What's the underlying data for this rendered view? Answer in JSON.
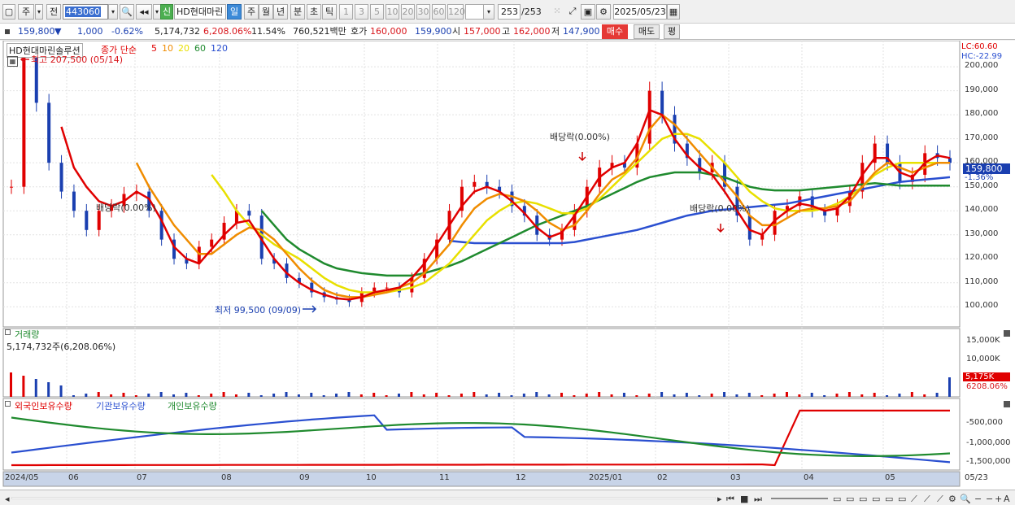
{
  "toolbar": {
    "period_main": "주",
    "prev_label": "전",
    "code": "443060",
    "stock_badge": "신",
    "stock_name": "HD현대마린",
    "periods": [
      "일",
      "주",
      "월",
      "년",
      "분",
      "초",
      "틱"
    ],
    "nums": [
      "1",
      "3",
      "5",
      "10",
      "20",
      "30",
      "60",
      "120"
    ],
    "count": "253",
    "count_total": "/253",
    "date": "2025/05/23"
  },
  "info": {
    "price": "159,800",
    "change": "1,000",
    "change_pct": "-0.62%",
    "volume": "5,174,732",
    "vol_ratio": "6,208.06%",
    "turnover": "11.54%",
    "amount": "760,521백만",
    "ask_label": "호가",
    "ask1": "160,000",
    "ask2": "159,900",
    "open_label": "시",
    "open": "157,000",
    "high_label": "고",
    "high": "162,000",
    "low_label": "저",
    "low": "147,900",
    "buy": "매수",
    "sell": "매도",
    "avg": "평"
  },
  "chart_data": {
    "type": "line",
    "title": "HD현대마린솔루션",
    "legend": {
      "price": "종가 단순",
      "ma": [
        "5",
        "10",
        "20",
        "60",
        "120"
      ],
      "ma_colors": [
        "#e00000",
        "#f08c00",
        "#e8e000",
        "#1f8a2e",
        "#2a4fd0"
      ]
    },
    "lc_hc": [
      "LC:60.60",
      "HC:-22.99"
    ],
    "y_ticks": [
      "200,000",
      "190,000",
      "180,000",
      "170,000",
      "160,000",
      "150,000",
      "140,000",
      "130,000",
      "120,000",
      "110,000",
      "100,000"
    ],
    "ylim": [
      95000,
      207500
    ],
    "current_price": "159,800",
    "current_pct": "-1.36%",
    "annotations": {
      "max": "최고 207,500 (05/14)",
      "min": "최저 99,500 (09/09)",
      "div1": "배당락(0.00%)",
      "div2": "배당락(0.00%)",
      "div3": "배당락(0.00%)"
    },
    "x_labels": [
      "2024/05",
      "06",
      "07",
      "08",
      "09",
      "10",
      "11",
      "12",
      "2025/01",
      "02",
      "03",
      "04",
      "05",
      "05/23"
    ],
    "close": [
      150000,
      205000,
      185000,
      160000,
      148000,
      140000,
      132000,
      140000,
      142000,
      147000,
      148000,
      140000,
      128000,
      120000,
      118000,
      125000,
      128000,
      135000,
      140000,
      138000,
      120000,
      118000,
      112000,
      110000,
      106000,
      104000,
      103000,
      102000,
      106000,
      108000,
      108000,
      106000,
      112000,
      120000,
      128000,
      140000,
      150000,
      152000,
      150000,
      148000,
      142000,
      138000,
      130000,
      128000,
      132000,
      140000,
      150000,
      158000,
      160000,
      158000,
      168000,
      190000,
      180000,
      168000,
      162000,
      156000,
      160000,
      150000,
      138000,
      128000,
      130000,
      140000,
      142000,
      146000,
      140000,
      138000,
      142000,
      148000,
      160000,
      168000,
      160000,
      152000,
      155000,
      164000,
      162000,
      160000
    ],
    "ma5": [
      null,
      null,
      null,
      null,
      175000,
      158000,
      150000,
      144000,
      142000,
      144000,
      148000,
      145000,
      136000,
      125000,
      120000,
      118000,
      124000,
      130000,
      135000,
      136000,
      128000,
      120000,
      114000,
      110000,
      107000,
      105000,
      103500,
      103000,
      104000,
      106000,
      107000,
      108000,
      112000,
      118000,
      126000,
      134000,
      142000,
      148000,
      150000,
      148000,
      144000,
      139000,
      133000,
      129000,
      131000,
      138000,
      146000,
      154000,
      158000,
      160000,
      168000,
      182000,
      180000,
      170000,
      163000,
      158000,
      155000,
      148000,
      140000,
      132000,
      130000,
      136000,
      140000,
      143000,
      142000,
      140000,
      141000,
      146000,
      155000,
      162000,
      162000,
      156000,
      154000,
      160000,
      163000,
      162000
    ],
    "ma10": [
      null,
      null,
      null,
      null,
      null,
      null,
      null,
      null,
      null,
      null,
      160000,
      150000,
      142000,
      134000,
      128000,
      122000,
      122000,
      126000,
      130000,
      133000,
      132000,
      128000,
      122000,
      116000,
      111000,
      107000,
      105000,
      104000,
      104000,
      105000,
      106000,
      108000,
      110000,
      114000,
      120000,
      126000,
      134000,
      141000,
      145000,
      147000,
      146000,
      144000,
      140000,
      135000,
      132000,
      134000,
      140000,
      147000,
      153000,
      156000,
      162000,
      174000,
      180000,
      176000,
      170000,
      164000,
      158000,
      152000,
      146000,
      138000,
      134000,
      134000,
      137000,
      140000,
      141000,
      141000,
      142000,
      144000,
      150000,
      156000,
      160000,
      158000,
      156000,
      158000,
      160000,
      160000
    ],
    "ma20": [
      null,
      null,
      null,
      null,
      null,
      null,
      null,
      null,
      null,
      null,
      null,
      null,
      null,
      null,
      null,
      null,
      155000,
      148000,
      140000,
      134000,
      130000,
      126000,
      123000,
      120000,
      116000,
      112000,
      109000,
      107000,
      106000,
      106000,
      106000,
      107000,
      108000,
      110000,
      114000,
      118000,
      124000,
      130000,
      136000,
      140000,
      143000,
      144000,
      143000,
      141000,
      139000,
      139000,
      141000,
      145000,
      150000,
      155000,
      160000,
      165000,
      170000,
      172000,
      172000,
      170000,
      165000,
      160000,
      154000,
      148000,
      144000,
      141000,
      140000,
      140000,
      140000,
      141000,
      143000,
      146000,
      150000,
      155000,
      158000,
      160000,
      160000,
      160000,
      160000,
      160000
    ],
    "ma60": [
      null,
      null,
      null,
      null,
      null,
      null,
      null,
      null,
      null,
      null,
      null,
      null,
      null,
      null,
      null,
      null,
      null,
      null,
      null,
      null,
      140000,
      134000,
      128000,
      124000,
      121000,
      118000,
      116000,
      115000,
      114000,
      113500,
      113000,
      113000,
      113000,
      114000,
      115500,
      117000,
      119000,
      121500,
      124000,
      126500,
      129000,
      131500,
      134000,
      136000,
      138000,
      140000,
      142000,
      144500,
      147000,
      149500,
      152000,
      154000,
      155000,
      156000,
      156000,
      156000,
      155000,
      154000,
      152000,
      150000,
      149000,
      148500,
      148500,
      148500,
      149000,
      149500,
      150000,
      150500,
      151000,
      151500,
      151000,
      150500,
      150500,
      150500,
      150500,
      150500
    ],
    "ma120": [
      null,
      null,
      null,
      null,
      null,
      null,
      null,
      null,
      null,
      null,
      null,
      null,
      null,
      null,
      null,
      null,
      null,
      null,
      null,
      null,
      null,
      null,
      null,
      null,
      null,
      null,
      null,
      null,
      null,
      null,
      null,
      null,
      null,
      null,
      null,
      127500,
      127000,
      126500,
      126500,
      126500,
      126500,
      126500,
      126500,
      126500,
      126500,
      127000,
      128000,
      129000,
      130000,
      131000,
      132000,
      133500,
      135000,
      136500,
      138000,
      139000,
      140000,
      140500,
      141000,
      141500,
      142000,
      142500,
      143000,
      144000,
      145000,
      146000,
      147000,
      148000,
      149000,
      150000,
      151000,
      152000,
      152500,
      153000,
      153500,
      154000
    ],
    "volume_panel": {
      "title": "거래량",
      "value": "5,174,732주(6,208.06%)",
      "y_ticks": [
        "15,000K",
        "10,000K"
      ],
      "current": "5,175K",
      "current_pct": "6208.06%"
    },
    "holdings_panel": {
      "legend": [
        "외국인보유수량",
        "기관보유수량",
        "개인보유수량"
      ],
      "colors": [
        "#e00000",
        "#2a4fd0",
        "#1f8a2e"
      ],
      "y_ticks": [
        "-500,000",
        "-1,000,000",
        "-1,500,000"
      ]
    }
  },
  "status": {
    "icons": [
      "play",
      "first",
      "stop",
      "next",
      "zoom-in",
      "minus",
      "zoom-out",
      "plus",
      "A"
    ]
  }
}
